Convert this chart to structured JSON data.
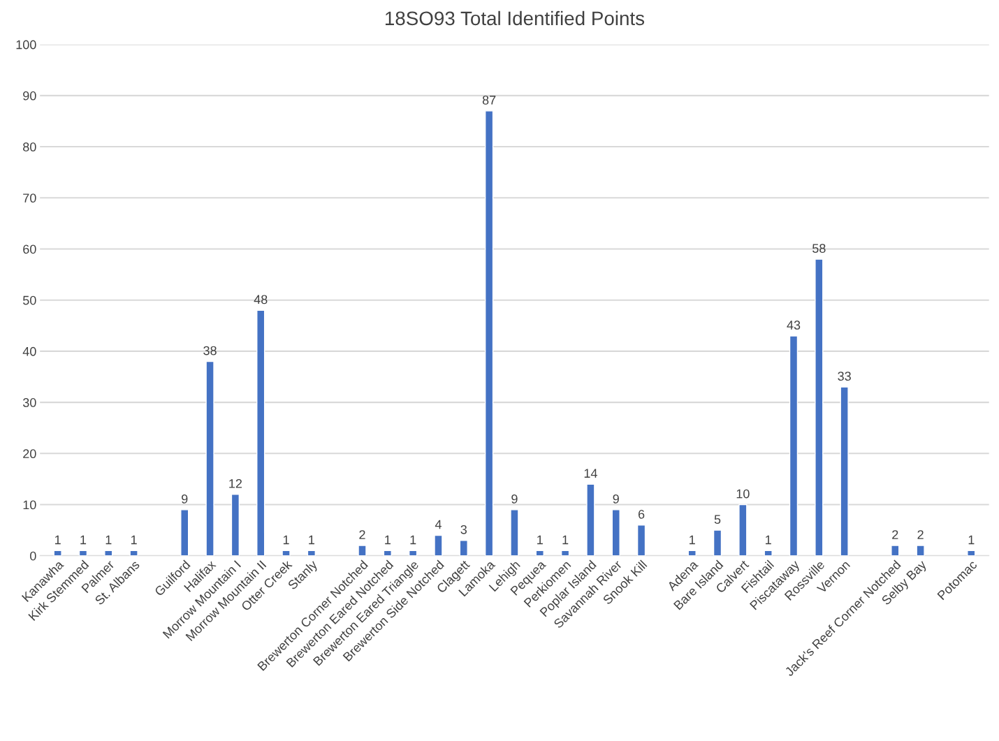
{
  "chart_data": {
    "type": "bar",
    "title": "18SO93 Total Identified Points",
    "categories": [
      "Kanawha",
      "Kirk Stemmed",
      "Palmer",
      "St. Albans",
      null,
      "Guilford",
      "Halifax",
      "Morrow Mountain I",
      "Morrow Mountain II",
      "Otter Creek",
      "Stanly",
      null,
      "Brewerton Corner Notched",
      "Brewerton Eared Notched",
      "Brewerton Eared Triangle",
      "Brewerton Side Notched",
      "Clagett",
      "Lamoka",
      "Lehigh",
      "Pequea",
      "Perkiomen",
      "Poplar Island",
      "Savannah River",
      "Snook Kill",
      null,
      "Adena",
      "Bare Island",
      "Calvert",
      "Fishtail",
      "Piscataway",
      "Rossville",
      "Vernon",
      null,
      "Jack's Reef Corner Notched",
      "Selby Bay",
      null,
      "Potomac"
    ],
    "values": [
      1,
      1,
      1,
      1,
      null,
      9,
      38,
      12,
      48,
      1,
      1,
      null,
      2,
      1,
      1,
      4,
      3,
      87,
      9,
      1,
      1,
      14,
      9,
      6,
      null,
      1,
      5,
      10,
      1,
      43,
      58,
      33,
      null,
      2,
      2,
      null,
      1
    ],
    "color": "#4472c4",
    "data_labels": true,
    "ylim": [
      0,
      100
    ],
    "yticks": [
      0,
      10,
      20,
      30,
      40,
      50,
      60,
      70,
      80,
      90,
      100
    ],
    "grid": "y"
  }
}
